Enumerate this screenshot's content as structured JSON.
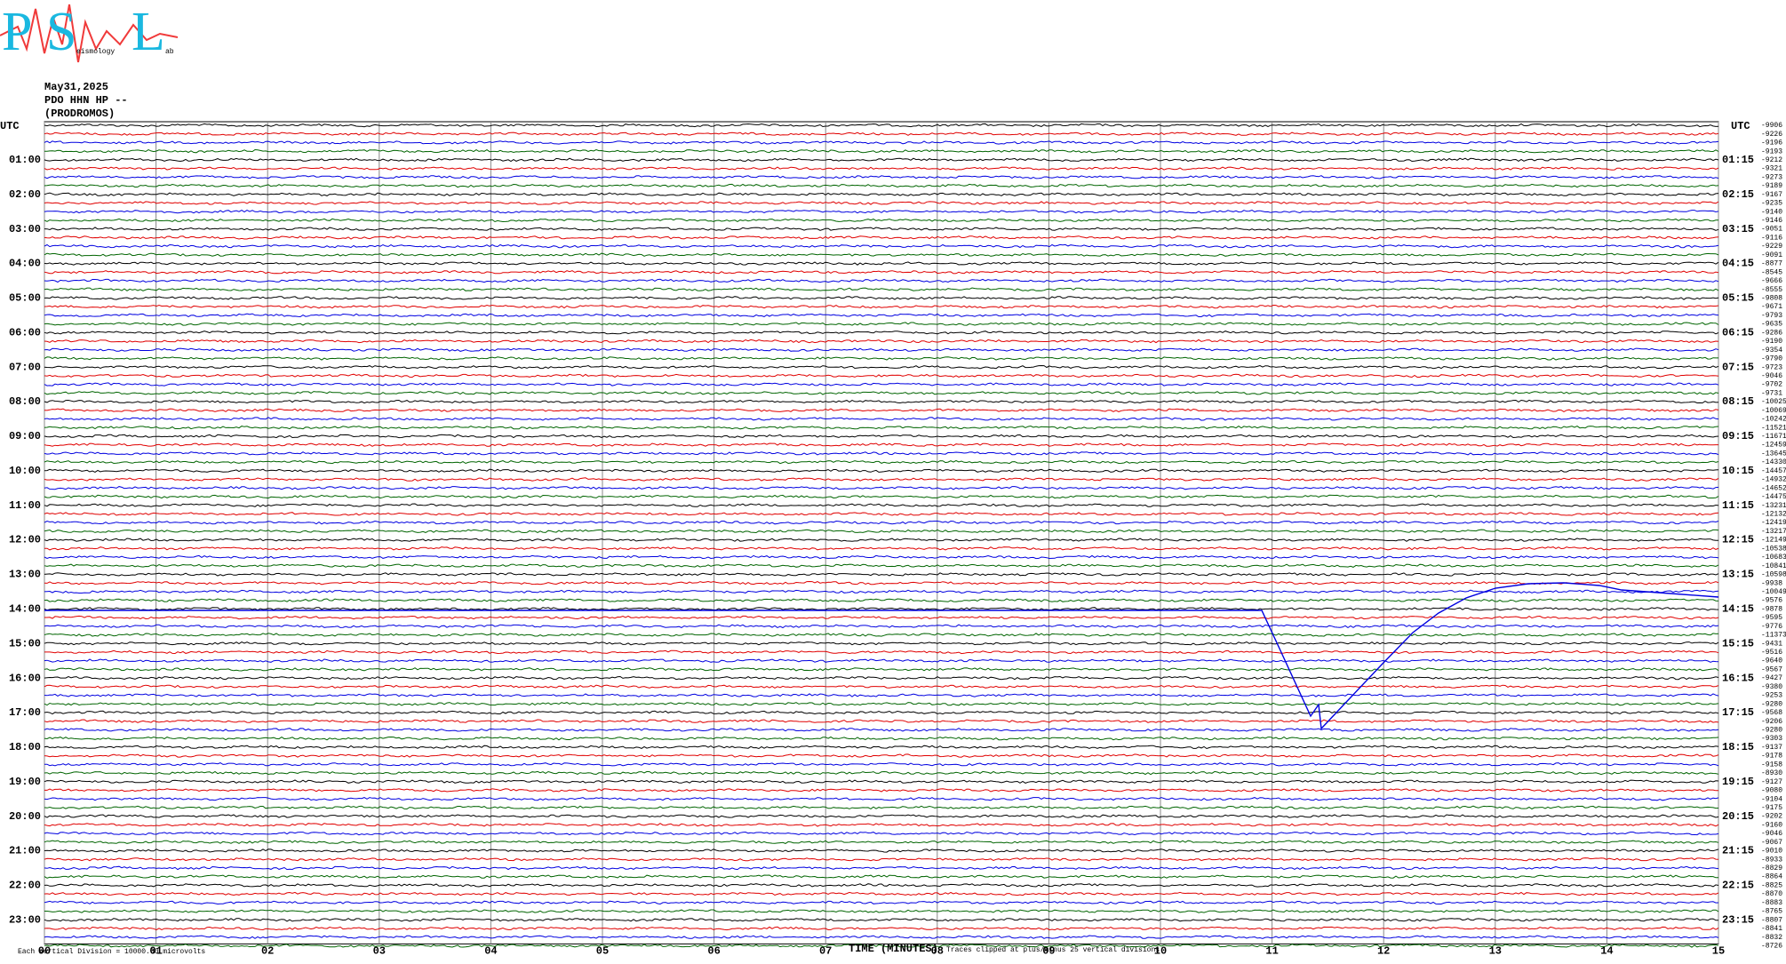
{
  "logo": {
    "p": "P",
    "s": "S",
    "l": "L",
    "s_small": "eismology",
    "l_small": "ab"
  },
  "chart_data": {
    "type": "helicorder",
    "title": "May31,2025",
    "subtitle": "PDO HHN HP --",
    "station_name": "(PRODROMOS)",
    "left_title": "UTC",
    "right_title": "UTC",
    "rows_left": [
      "01:00",
      "02:00",
      "03:00",
      "04:00",
      "05:00",
      "06:00",
      "07:00",
      "08:00",
      "09:00",
      "10:00",
      "11:00",
      "12:00",
      "13:00",
      "14:00",
      "15:00",
      "16:00",
      "17:00",
      "18:00",
      "19:00",
      "20:00",
      "21:00",
      "22:00",
      "23:00"
    ],
    "rows_right": [
      "01:15",
      "02:15",
      "03:15",
      "04:15",
      "05:15",
      "06:15",
      "07:15",
      "08:15",
      "09:15",
      "10:15",
      "11:15",
      "12:15",
      "13:15",
      "14:15",
      "15:15",
      "16:15",
      "17:15",
      "18:15",
      "19:15",
      "20:15",
      "21:15",
      "22:15",
      "23:15"
    ],
    "trace_offsets": [
      -9906,
      -9226,
      -9196,
      -9193,
      -9212,
      -9321,
      -9273,
      -9189,
      -9167,
      -9235,
      -9140,
      -9146,
      -9051,
      -9116,
      -9229,
      -9091,
      -8877,
      -8545,
      -9666,
      -8555,
      -9808,
      -9671,
      -9793,
      -9635,
      -9286,
      -9190,
      -9354,
      -9790,
      -9723,
      -9046,
      -9702,
      -9731,
      -10025,
      -10069,
      -10242,
      -11521,
      -11671,
      -12459,
      -13645,
      -14330,
      -14457,
      -14932,
      -14652,
      -14475,
      -13231,
      -12132,
      -12419,
      -13217,
      -12149,
      -10538,
      -10683,
      -10841,
      -10598,
      -9938,
      -10049,
      -9576,
      -9878,
      -9595,
      -9776,
      -11373,
      -9431,
      -9516,
      -9640,
      -9567,
      -9427,
      -9380,
      -9253,
      -9280,
      -9568,
      -9206,
      -9280,
      -9303,
      -9137,
      -9178,
      -9158,
      -8930,
      -9127,
      -9080,
      -9104,
      -9175,
      -9202,
      -9160,
      -9046,
      -9067,
      -9010,
      -8933,
      -8829,
      -8864,
      -8825,
      -8870,
      -8883,
      -8765,
      -8807,
      -8841,
      -8832,
      -8726
    ],
    "trace_colors": [
      "#000000",
      "#e00000",
      "#0000e0",
      "#006400"
    ],
    "xlabel": "TIME (MINUTES)",
    "xlim": [
      0,
      15
    ],
    "xticks": [
      {
        "value": 0,
        "label": "00"
      },
      {
        "value": 1,
        "label": "01"
      },
      {
        "value": 2,
        "label": "02"
      },
      {
        "value": 3,
        "label": "03"
      },
      {
        "value": 4,
        "label": "04"
      },
      {
        "value": 5,
        "label": "05"
      },
      {
        "value": 6,
        "label": "06"
      },
      {
        "value": 7,
        "label": "07"
      },
      {
        "value": 8,
        "label": "08"
      },
      {
        "value": 9,
        "label": "09"
      },
      10,
      11,
      12,
      13,
      14,
      15
    ],
    "grid": true,
    "scale_note": "Each Vertical Division = 10000.00 microvolts",
    "clip_note": "Traces clipped at plus/minus 25 vertical divisions"
  }
}
